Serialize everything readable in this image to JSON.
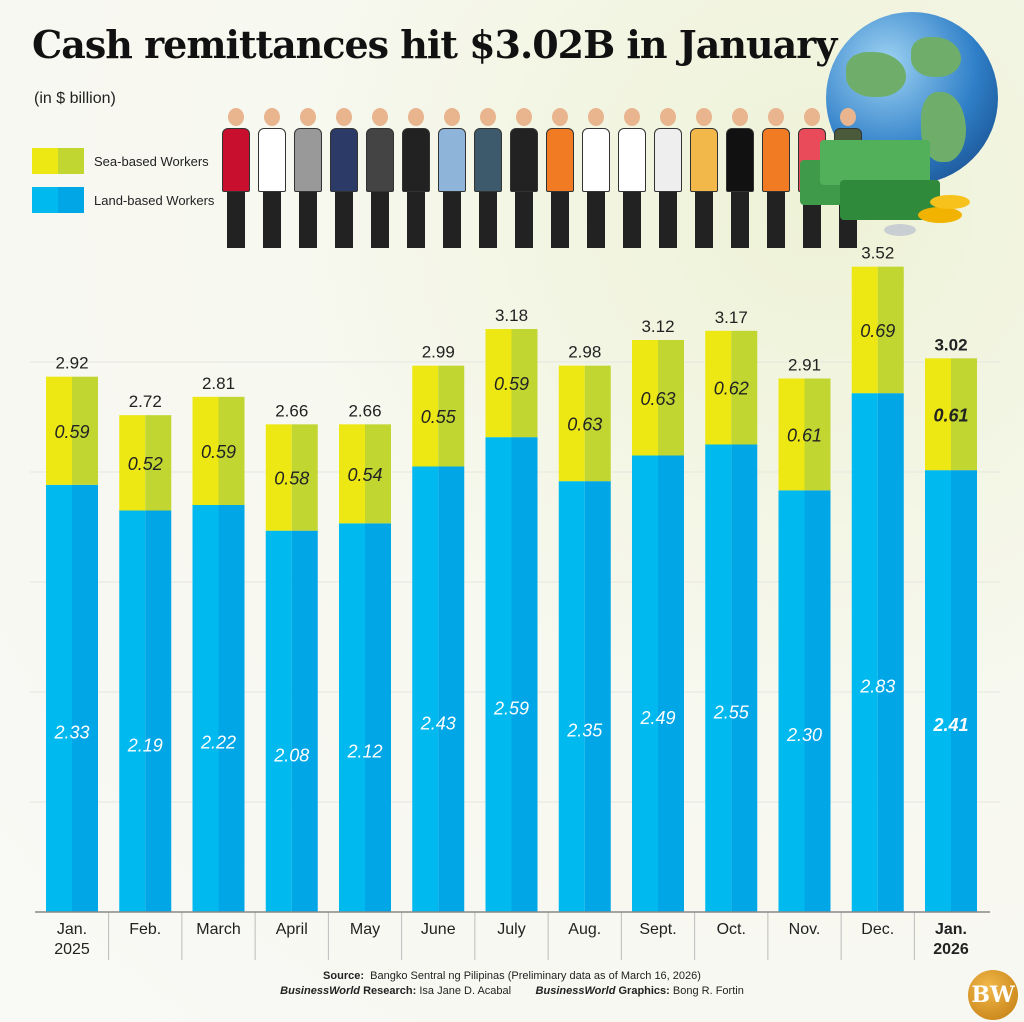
{
  "header": {
    "title": "Cash remittances hit $3.02B in January",
    "subtitle": "(in $ billion)"
  },
  "legend": [
    {
      "label": "Sea-based Workers",
      "colors": [
        "#ede714",
        "#c1d631"
      ]
    },
    {
      "label": "Land-based Workers",
      "colors": [
        "#00b9ef",
        "#00a6e6"
      ]
    }
  ],
  "chart_data": {
    "type": "bar",
    "stacked": true,
    "title": "Cash remittances hit $3.02B in January",
    "subtitle": "(in $ billion)",
    "categories": [
      "Jan. 2025",
      "Feb.",
      "March",
      "April",
      "May",
      "June",
      "July",
      "Aug.",
      "Sept.",
      "Oct.",
      "Nov.",
      "Dec.",
      "Jan. 2026"
    ],
    "category_lines": [
      [
        "Jan.",
        "2025"
      ],
      [
        "Feb."
      ],
      [
        "March"
      ],
      [
        "April"
      ],
      [
        "May"
      ],
      [
        "June"
      ],
      [
        "July"
      ],
      [
        "Aug."
      ],
      [
        "Sept."
      ],
      [
        "Oct."
      ],
      [
        "Nov."
      ],
      [
        "Dec."
      ],
      [
        "Jan.",
        "2026"
      ]
    ],
    "series": [
      {
        "name": "Land-based Workers",
        "values": [
          2.33,
          2.19,
          2.22,
          2.08,
          2.12,
          2.43,
          2.59,
          2.35,
          2.49,
          2.55,
          2.3,
          2.83,
          2.41
        ]
      },
      {
        "name": "Sea-based Workers",
        "values": [
          0.59,
          0.52,
          0.59,
          0.58,
          0.54,
          0.55,
          0.59,
          0.63,
          0.63,
          0.62,
          0.61,
          0.69,
          0.61
        ]
      }
    ],
    "totals": [
      2.92,
      2.72,
      2.81,
      2.66,
      2.66,
      2.99,
      3.18,
      2.98,
      3.12,
      3.17,
      2.91,
      3.52,
      3.02
    ],
    "ylim": [
      0,
      3.6
    ],
    "grid": true,
    "legend_position": "top-left",
    "highlight_last": true
  },
  "footer": {
    "source_label": "Source:",
    "source_text": "Bangko Sentral ng Pilipinas (Preliminary data as of March 16, 2026)",
    "brand": "BusinessWorld",
    "research_label": "Research:",
    "research_name": "Isa Jane D. Acabal",
    "graphics_label": "Graphics:",
    "graphics_name": "Bong R. Fortin",
    "logo": "BW"
  }
}
